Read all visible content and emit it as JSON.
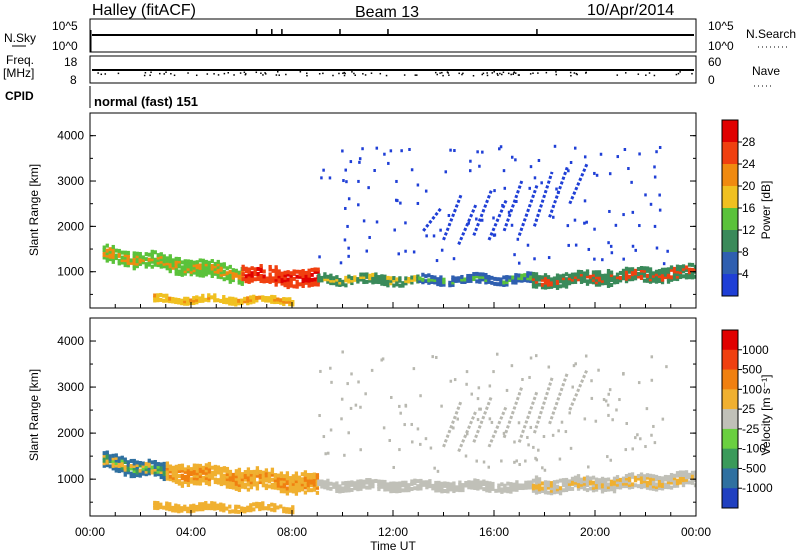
{
  "header": {
    "station": "Halley (fitACF)",
    "beam": "Beam 13",
    "date": "10/Apr/2014"
  },
  "nsky_panel": {
    "left_label": "N.Sky",
    "right_label": "N.Search",
    "left_ticks": [
      "10^5",
      "10^0"
    ],
    "right_ticks": [
      "10^5",
      "10^0"
    ]
  },
  "freq_panel": {
    "left_label_line1": "Freq.",
    "left_label_line2": "[MHz]",
    "right_label": "Nave",
    "left_ticks": [
      "18",
      "8"
    ],
    "right_ticks": [
      "60",
      "0"
    ]
  },
  "cpid": {
    "label": "CPID",
    "text": "normal (fast) 151"
  },
  "x_axis": {
    "label": "Time UT",
    "ticks": [
      "00:00",
      "04:00",
      "08:00",
      "12:00",
      "16:00",
      "20:00",
      "00:00"
    ],
    "range_hours": [
      0,
      24
    ]
  },
  "colors": {
    "power": [
      "#1f3fd6",
      "#2f5fb0",
      "#3a8a5a",
      "#5ac23a",
      "#f0c020",
      "#f08a10",
      "#f04010",
      "#e00000"
    ],
    "velocity": [
      "#2040c0",
      "#2f70a0",
      "#3a9a5a",
      "#6ad040",
      "#c0c0b8",
      "#f0b030",
      "#f08010",
      "#f04010",
      "#e00000"
    ],
    "ground": "#b8b8b0"
  },
  "chart_data": [
    {
      "type": "heatmap",
      "panel": "power",
      "ylabel": "Slant Range [km]",
      "yticks": [
        1000,
        2000,
        3000,
        4000
      ],
      "ylim": [
        200,
        4500
      ],
      "colorbar_label": "Power [dB]",
      "colorbar_ticks": [
        "28",
        "24",
        "20",
        "16",
        "12",
        "8",
        "4"
      ],
      "bands": [
        {
          "start_h": 0.5,
          "end_h": 6.0,
          "center_start_km": 1400,
          "center_end_km": 950,
          "half_width_km": 160,
          "levels": [
            3,
            5
          ]
        },
        {
          "start_h": 6.0,
          "end_h": 9.0,
          "center_start_km": 950,
          "center_end_km": 850,
          "half_width_km": 170,
          "levels": [
            6,
            7
          ]
        },
        {
          "start_h": 9.0,
          "end_h": 13.0,
          "center_start_km": 850,
          "center_end_km": 820,
          "half_width_km": 90,
          "levels": [
            2,
            4
          ]
        },
        {
          "start_h": 13.0,
          "end_h": 17.5,
          "center_start_km": 820,
          "center_end_km": 850,
          "half_width_km": 80,
          "levels": [
            1,
            3
          ]
        },
        {
          "start_h": 17.5,
          "end_h": 24.0,
          "center_start_km": 800,
          "center_end_km": 1000,
          "half_width_km": 140,
          "levels": [
            2,
            6
          ]
        },
        {
          "start_h": 2.5,
          "end_h": 8.0,
          "center_start_km": 400,
          "center_end_km": 380,
          "half_width_km": 60,
          "levels": [
            4,
            5
          ]
        }
      ],
      "streaks": [
        {
          "h": 14.0,
          "start_km": 1700,
          "end_km": 2700
        },
        {
          "h": 14.6,
          "start_km": 1600,
          "end_km": 2500
        },
        {
          "h": 15.2,
          "start_km": 1800,
          "end_km": 2800
        },
        {
          "h": 15.8,
          "start_km": 1700,
          "end_km": 2600
        },
        {
          "h": 16.4,
          "start_km": 1900,
          "end_km": 3000
        },
        {
          "h": 17.0,
          "start_km": 1800,
          "end_km": 2900
        },
        {
          "h": 17.6,
          "start_km": 2000,
          "end_km": 3200
        },
        {
          "h": 18.2,
          "start_km": 2200,
          "end_km": 3300
        },
        {
          "h": 13.2,
          "start_km": 1900,
          "end_km": 2400
        },
        {
          "h": 19.0,
          "start_km": 2500,
          "end_km": 3400
        }
      ]
    },
    {
      "type": "heatmap",
      "panel": "velocity",
      "ylabel": "Slant Range [km]",
      "yticks": [
        1000,
        2000,
        3000,
        4000
      ],
      "ylim": [
        200,
        4500
      ],
      "colorbar_label": "Velocity [m s⁻¹]",
      "colorbar_ticks": [
        "1000",
        "500",
        "100",
        "25",
        "-25",
        "-100",
        "-500",
        "-1000"
      ],
      "bands": [
        {
          "start_h": 0.5,
          "end_h": 3.0,
          "center_start_km": 1400,
          "center_end_km": 1150,
          "half_width_km": 160,
          "levels": [
            1,
            2,
            3,
            5
          ]
        },
        {
          "start_h": 3.0,
          "end_h": 9.0,
          "center_start_km": 1150,
          "center_end_km": 900,
          "half_width_km": 200,
          "levels": [
            5,
            6
          ]
        },
        {
          "start_h": 9.0,
          "end_h": 17.5,
          "center_start_km": 880,
          "center_end_km": 850,
          "half_width_km": 90,
          "levels": [
            4
          ]
        },
        {
          "start_h": 17.5,
          "end_h": 24.0,
          "center_start_km": 850,
          "center_end_km": 1000,
          "half_width_km": 140,
          "levels": [
            4,
            5
          ]
        },
        {
          "start_h": 2.5,
          "end_h": 8.0,
          "center_start_km": 400,
          "center_end_km": 380,
          "half_width_km": 60,
          "levels": [
            5
          ]
        }
      ],
      "streaks": [
        {
          "h": 14.0,
          "start_km": 1700,
          "end_km": 2700
        },
        {
          "h": 14.6,
          "start_km": 1600,
          "end_km": 2500
        },
        {
          "h": 15.2,
          "start_km": 1800,
          "end_km": 2800
        },
        {
          "h": 15.8,
          "start_km": 1700,
          "end_km": 2600
        },
        {
          "h": 16.4,
          "start_km": 1900,
          "end_km": 3000
        },
        {
          "h": 17.0,
          "start_km": 1800,
          "end_km": 2900
        },
        {
          "h": 17.6,
          "start_km": 2000,
          "end_km": 3200
        },
        {
          "h": 18.2,
          "start_km": 2200,
          "end_km": 3300
        },
        {
          "h": 19.0,
          "start_km": 2500,
          "end_km": 3400
        }
      ]
    }
  ]
}
